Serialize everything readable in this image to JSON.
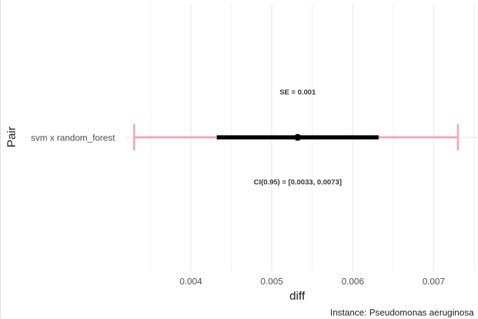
{
  "chart_data": {
    "type": "errorbar",
    "xlabel": "diff",
    "ylabel": "Pair",
    "xlim": [
      0.00335,
      0.0073
    ],
    "x_ticks": [
      "0.004",
      "0.005",
      "0.006",
      "0.007"
    ],
    "x_tick_values": [
      0.004,
      0.005,
      0.006,
      0.007
    ],
    "grid": true,
    "categories": [
      "svm x random_forest"
    ],
    "estimates": [
      {
        "pair": "svm x random_forest",
        "diff": 0.00532,
        "se_low": 0.00432,
        "se_high": 0.00632,
        "ci_low": 0.0033,
        "ci_high": 0.0073,
        "se_label": "SE = 0.001",
        "ci_label": "CI(0.95) = [0.0033, 0.0073]"
      }
    ],
    "colors": {
      "ci": "#f4a6b8",
      "se": "#000000",
      "point": "#000000",
      "grid": "#ebebeb"
    },
    "caption": "Instance: Pseudomonas aeruginosa"
  }
}
